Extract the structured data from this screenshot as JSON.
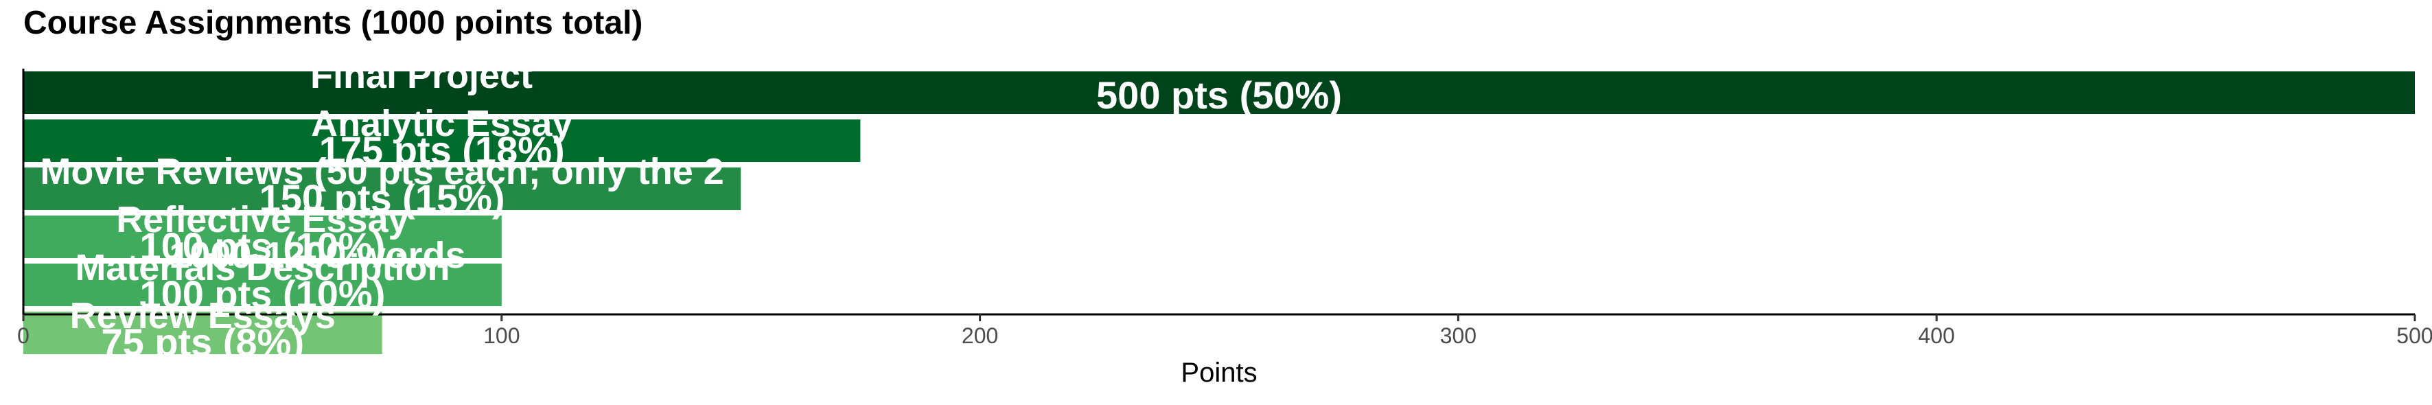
{
  "chart_data": {
    "type": "bar",
    "orientation": "horizontal",
    "title": "Course Assignments (1000 points total)",
    "xlabel": "Points",
    "ylabel": "",
    "xlim": [
      0,
      500
    ],
    "xticks": [
      0,
      100,
      200,
      300,
      400,
      500
    ],
    "grid": false,
    "legend": "none",
    "categories": [
      "Final Project",
      "Analytic Essay",
      "Movie Reviews",
      "Reflective Essay",
      "Materials Description",
      "Review Essays"
    ],
    "category_labels": [
      "Final Project",
      "Analytic Essay",
      "Movie Reviews (50 pts each; only the 2",
      "Reflective Essay",
      "Materials Description",
      "Review Essays"
    ],
    "values": [
      500,
      175,
      150,
      100,
      100,
      75
    ],
    "value_labels": [
      "500 pts (50%)",
      "175 pts (18%)",
      "150 pts (15%)",
      "100 pts (10%)",
      "100 pts (10%)",
      "75 pts (8%)"
    ],
    "bar_details": [
      "",
      "",
      "",
      "1000-1200 words",
      "",
      ""
    ],
    "colors": [
      "#00441b",
      "#006d2c",
      "#238b45",
      "#41ab5d",
      "#41ab5d",
      "#74c476"
    ]
  }
}
